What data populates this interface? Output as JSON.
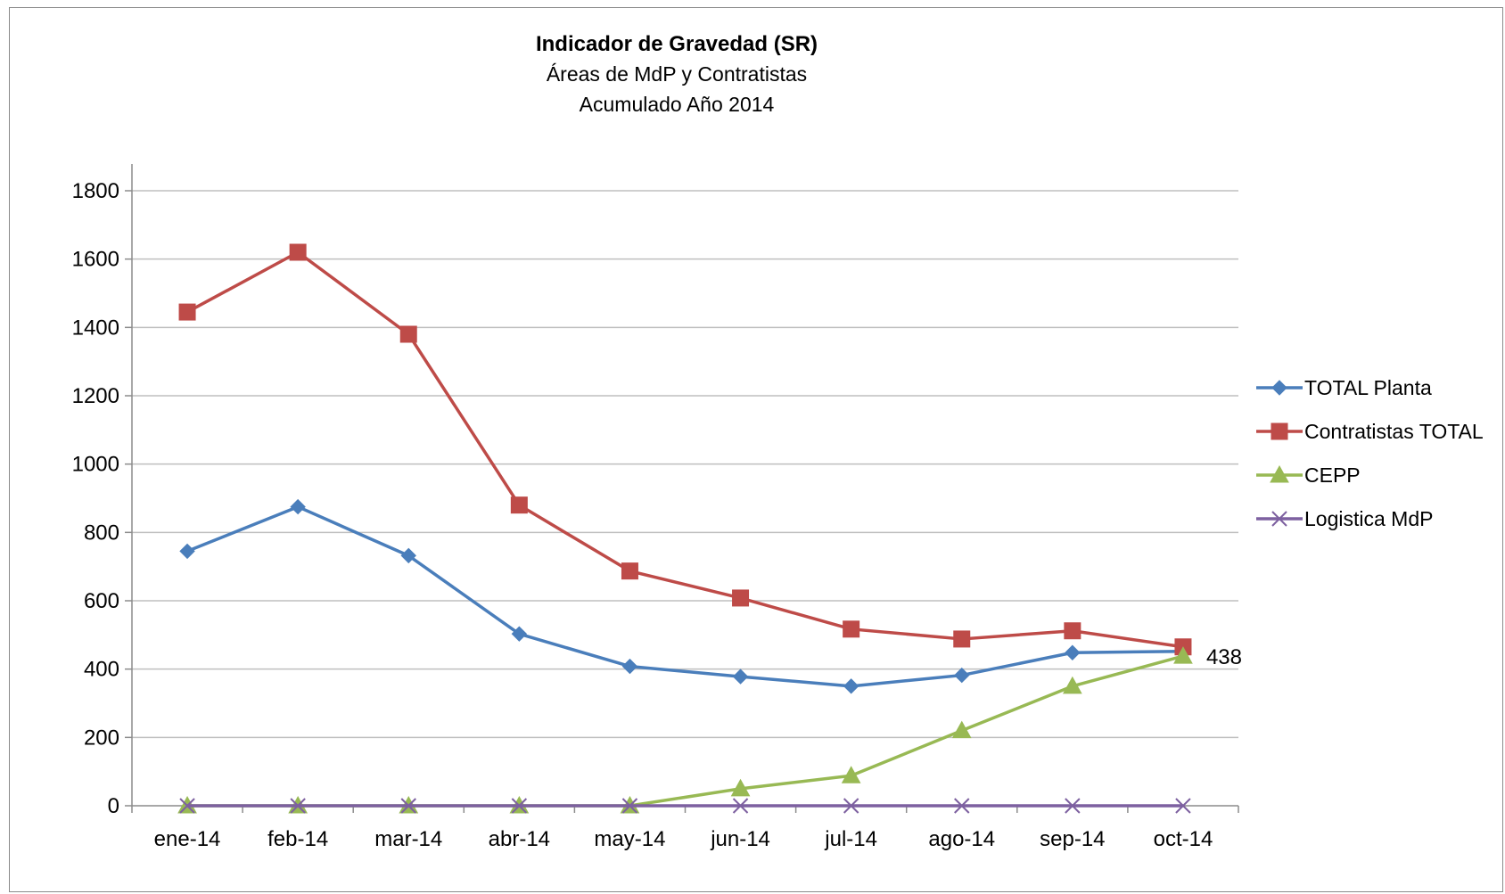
{
  "chart_data": {
    "type": "line",
    "title": "Indicador de Gravedad (SR)",
    "subtitle_lines": [
      "Áreas de MdP y Contratistas",
      "Acumulado Año 2014"
    ],
    "categories": [
      "ene-14",
      "feb-14",
      "mar-14",
      "abr-14",
      "may-14",
      "jun-14",
      "jul-14",
      "ago-14",
      "sep-14",
      "oct-14"
    ],
    "ylim": [
      0,
      1800
    ],
    "yticks": [
      0,
      200,
      400,
      600,
      800,
      1000,
      1200,
      1400,
      1600,
      1800
    ],
    "ytick_labels": [
      "0",
      "200",
      "400",
      "600",
      "800",
      "1000",
      "1200",
      "1400",
      "1600",
      "1800"
    ],
    "grid": true,
    "legend_position": "right",
    "series": [
      {
        "name": "TOTAL Planta",
        "color": "#4a7ebb",
        "marker": "diamond",
        "values": [
          745,
          875,
          732,
          503,
          408,
          378,
          350,
          382,
          448,
          452
        ]
      },
      {
        "name": "Contratistas TOTAL",
        "color": "#be4b48",
        "marker": "square",
        "values": [
          1445,
          1620,
          1380,
          880,
          687,
          608,
          517,
          488,
          512,
          465
        ]
      },
      {
        "name": "CEPP",
        "color": "#98b954",
        "marker": "triangle",
        "values": [
          0,
          0,
          0,
          0,
          0,
          50,
          88,
          220,
          350,
          438
        ]
      },
      {
        "name": "Logistica MdP",
        "color": "#7d60a0",
        "marker": "x",
        "values": [
          0,
          0,
          0,
          0,
          0,
          0,
          0,
          0,
          0,
          0
        ]
      }
    ],
    "annotations": [
      {
        "series": "CEPP",
        "category": "oct-14",
        "text": "438"
      }
    ]
  }
}
